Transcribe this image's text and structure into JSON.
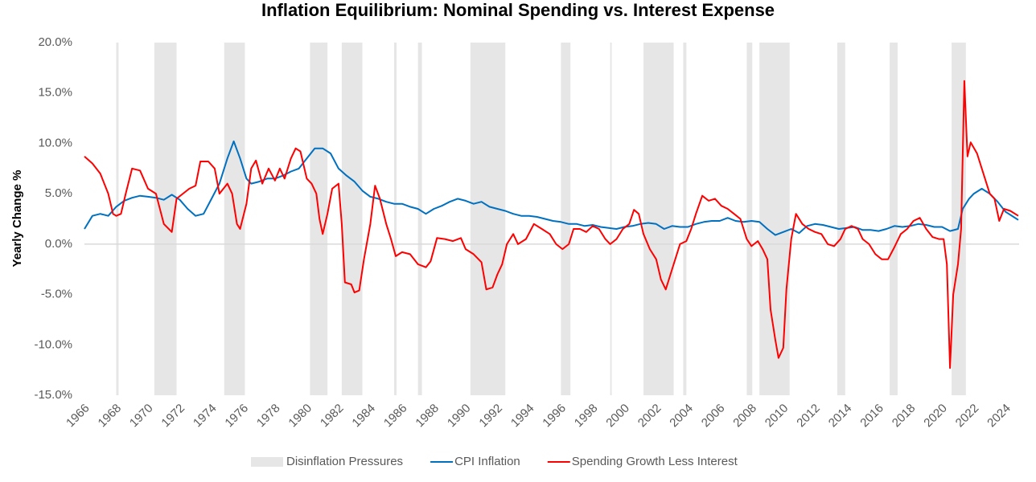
{
  "chart_data": {
    "type": "line",
    "title": "Inflation Equilibrium: Nominal Spending vs. Interest Expense",
    "y_label": "Yearly Change %",
    "xlim": [
      1966,
      2024.85
    ],
    "xticks": [
      1966,
      1968,
      1970,
      1972,
      1974,
      1976,
      1978,
      1980,
      1982,
      1984,
      1986,
      1988,
      1990,
      1992,
      1994,
      1996,
      1998,
      2000,
      2002,
      2004,
      2006,
      2008,
      2010,
      2012,
      2014,
      2016,
      2018,
      2020,
      2022,
      2024
    ],
    "ylim": [
      -15,
      20
    ],
    "yticks": [
      {
        "value": -15,
        "label": "-15.0%"
      },
      {
        "value": -10,
        "label": "-10.0%"
      },
      {
        "value": -5,
        "label": "-5.0%"
      },
      {
        "value": 0,
        "label": "0.0%"
      },
      {
        "value": 5,
        "label": "5.0%"
      },
      {
        "value": 10,
        "label": "10.0%"
      },
      {
        "value": 15,
        "label": "15.0%"
      },
      {
        "value": 20,
        "label": "20.0%"
      }
    ],
    "shaded": {
      "name": "Disinflation Pressures",
      "color": "#e6e6e6",
      "ranges": [
        [
          1968.0,
          1968.15
        ],
        [
          1970.4,
          1971.8
        ],
        [
          1974.8,
          1976.1
        ],
        [
          1980.2,
          1981.3
        ],
        [
          1982.2,
          1983.5
        ],
        [
          1985.5,
          1985.65
        ],
        [
          1987.0,
          1987.25
        ],
        [
          1990.3,
          1992.5
        ],
        [
          1996.0,
          1996.6
        ],
        [
          1999.1,
          1999.2
        ],
        [
          2001.2,
          2003.1
        ],
        [
          2003.7,
          2003.9
        ],
        [
          2007.7,
          2008.05
        ],
        [
          2008.5,
          2010.4
        ],
        [
          2013.4,
          2013.9
        ],
        [
          2016.7,
          2017.2
        ],
        [
          2020.6,
          2021.5
        ]
      ]
    },
    "series": [
      {
        "name": "CPI Inflation",
        "color": "#0070c0",
        "x": [
          1966,
          1966.5,
          1967,
          1967.5,
          1968,
          1968.5,
          1969,
          1969.5,
          1970,
          1970.5,
          1971,
          1971.5,
          1972,
          1972.5,
          1973,
          1973.5,
          1974,
          1974.5,
          1975,
          1975.4,
          1975.8,
          1976.2,
          1976.5,
          1977,
          1977.5,
          1978,
          1978.5,
          1979,
          1979.5,
          1980,
          1980.5,
          1981,
          1981.5,
          1982,
          1982.5,
          1983,
          1983.5,
          1984,
          1984.5,
          1985,
          1985.5,
          1986,
          1986.5,
          1987,
          1987.5,
          1988,
          1988.5,
          1989,
          1989.5,
          1990,
          1990.5,
          1991,
          1991.5,
          1992,
          1992.5,
          1993,
          1993.5,
          1994,
          1994.5,
          1995,
          1995.5,
          1996,
          1996.5,
          1997,
          1997.5,
          1998,
          1998.5,
          1999,
          1999.5,
          2000,
          2000.5,
          2001,
          2001.5,
          2002,
          2002.5,
          2003,
          2003.5,
          2004,
          2004.5,
          2005,
          2005.5,
          2006,
          2006.5,
          2007,
          2007.5,
          2008,
          2008.5,
          2009,
          2009.5,
          2010,
          2010.5,
          2011,
          2011.5,
          2012,
          2012.5,
          2013,
          2013.5,
          2014,
          2014.5,
          2015,
          2015.5,
          2016,
          2016.5,
          2017,
          2017.5,
          2018,
          2018.5,
          2019,
          2019.5,
          2020,
          2020.5,
          2021,
          2021.3,
          2021.7,
          2022,
          2022.5,
          2023,
          2023.5,
          2024,
          2024.5,
          2024.8
        ],
        "values": [
          1.5,
          2.8,
          3.0,
          2.8,
          3.7,
          4.3,
          4.6,
          4.8,
          4.7,
          4.6,
          4.4,
          4.9,
          4.4,
          3.5,
          2.8,
          3.0,
          4.5,
          6.0,
          8.5,
          10.2,
          8.5,
          6.5,
          6.0,
          6.2,
          6.5,
          6.5,
          6.8,
          7.2,
          7.5,
          8.5,
          9.5,
          9.5,
          9.0,
          7.5,
          6.8,
          6.2,
          5.3,
          4.7,
          4.5,
          4.2,
          4.0,
          4.0,
          3.7,
          3.5,
          3.0,
          3.5,
          3.8,
          4.2,
          4.5,
          4.3,
          4.0,
          4.2,
          3.7,
          3.5,
          3.3,
          3.0,
          2.8,
          2.8,
          2.7,
          2.5,
          2.3,
          2.2,
          2.0,
          2.0,
          1.8,
          1.9,
          1.7,
          1.6,
          1.5,
          1.7,
          1.8,
          2.0,
          2.1,
          2.0,
          1.5,
          1.8,
          1.7,
          1.7,
          2.0,
          2.2,
          2.3,
          2.3,
          2.6,
          2.3,
          2.2,
          2.3,
          2.2,
          1.5,
          0.9,
          1.2,
          1.5,
          1.1,
          1.8,
          2.0,
          1.9,
          1.7,
          1.5,
          1.6,
          1.7,
          1.4,
          1.4,
          1.3,
          1.5,
          1.8,
          1.7,
          1.8,
          2.0,
          1.9,
          1.7,
          1.7,
          1.3,
          1.5,
          3.5,
          4.5,
          5.0,
          5.5,
          5.0,
          4.2,
          3.2,
          2.7,
          2.4
        ]
      },
      {
        "name": "Spending Growth Less Interest",
        "color": "#ff0000",
        "x": [
          1966,
          1966.5,
          1967,
          1967.5,
          1967.8,
          1968,
          1968.3,
          1968.6,
          1969,
          1969.5,
          1970,
          1970.5,
          1971,
          1971.5,
          1971.8,
          1972.2,
          1972.6,
          1973,
          1973.3,
          1973.8,
          1974.2,
          1974.5,
          1975,
          1975.3,
          1975.6,
          1975.8,
          1976.2,
          1976.5,
          1976.8,
          1977.2,
          1977.6,
          1978,
          1978.3,
          1978.6,
          1979,
          1979.3,
          1979.6,
          1980,
          1980.3,
          1980.6,
          1980.8,
          1981,
          1981.3,
          1981.6,
          1982,
          1982.2,
          1982.4,
          1982.8,
          1983,
          1983.3,
          1983.6,
          1984,
          1984.3,
          1984.6,
          1985,
          1985.3,
          1985.6,
          1986,
          1986.5,
          1987,
          1987.5,
          1987.8,
          1988.2,
          1988.7,
          1989.2,
          1989.7,
          1990,
          1990.5,
          1991,
          1991.3,
          1991.7,
          1992,
          1992.3,
          1992.6,
          1993,
          1993.3,
          1993.8,
          1994.3,
          1994.8,
          1995.3,
          1995.7,
          1996.1,
          1996.5,
          1996.8,
          1997.2,
          1997.6,
          1998,
          1998.4,
          1998.8,
          1999.1,
          1999.5,
          1999.9,
          2000.3,
          2000.6,
          2000.9,
          2001.2,
          2001.6,
          2002,
          2002.3,
          2002.6,
          2002.9,
          2003.2,
          2003.5,
          2003.9,
          2004.2,
          2004.5,
          2004.9,
          2005.3,
          2005.7,
          2006.1,
          2006.5,
          2006.9,
          2007.3,
          2007.7,
          2008,
          2008.4,
          2008.7,
          2009,
          2009.2,
          2009.5,
          2009.7,
          2010,
          2010.2,
          2010.5,
          2010.8,
          2011.2,
          2011.6,
          2012,
          2012.4,
          2012.8,
          2013.2,
          2013.6,
          2013.9,
          2014.3,
          2014.7,
          2015,
          2015.4,
          2015.8,
          2016.2,
          2016.6,
          2017,
          2017.4,
          2017.8,
          2018.2,
          2018.6,
          2019,
          2019.4,
          2019.8,
          2020.1,
          2020.3,
          2020.5,
          2020.7,
          2021,
          2021.2,
          2021.4,
          2021.6,
          2021.8,
          2022.2,
          2022.6,
          2023,
          2023.3,
          2023.6,
          2023.9,
          2024.3,
          2024.8
        ],
        "values": [
          8.7,
          8.0,
          7.0,
          5.0,
          3.0,
          2.8,
          3.0,
          5.0,
          7.5,
          7.3,
          5.5,
          5.0,
          2.0,
          1.2,
          4.5,
          5.0,
          5.5,
          5.8,
          8.2,
          8.2,
          7.5,
          5.0,
          6.0,
          5.0,
          2.0,
          1.5,
          4.0,
          7.5,
          8.3,
          6.0,
          7.5,
          6.3,
          7.5,
          6.5,
          8.5,
          9.5,
          9.2,
          6.5,
          6.0,
          5.0,
          2.5,
          1.0,
          3.0,
          5.5,
          6.0,
          2.0,
          -3.8,
          -4.0,
          -4.8,
          -4.6,
          -1.5,
          2.0,
          5.8,
          4.5,
          2.0,
          0.5,
          -1.2,
          -0.8,
          -1.0,
          -2.0,
          -2.3,
          -1.7,
          0.6,
          0.5,
          0.3,
          0.6,
          -0.5,
          -1.0,
          -1.8,
          -4.5,
          -4.3,
          -3.0,
          -2.0,
          0.0,
          1.0,
          0.0,
          0.5,
          2.0,
          1.5,
          1.0,
          0.0,
          -0.5,
          0.0,
          1.5,
          1.5,
          1.2,
          1.8,
          1.5,
          0.5,
          0.0,
          0.5,
          1.5,
          2.0,
          3.4,
          3.0,
          1.0,
          -0.5,
          -1.5,
          -3.5,
          -4.5,
          -3.0,
          -1.5,
          0.0,
          0.3,
          1.5,
          3.0,
          4.8,
          4.3,
          4.5,
          3.8,
          3.5,
          3.0,
          2.5,
          0.5,
          -0.2,
          0.3,
          -0.5,
          -1.5,
          -6.5,
          -9.5,
          -11.3,
          -10.3,
          -4.5,
          0.5,
          3.0,
          2.0,
          1.5,
          1.2,
          1.0,
          0.0,
          -0.2,
          0.5,
          1.5,
          1.8,
          1.5,
          0.5,
          0.0,
          -1.0,
          -1.5,
          -1.5,
          -0.3,
          1.0,
          1.5,
          2.3,
          2.6,
          1.5,
          0.7,
          0.5,
          0.5,
          -2.0,
          -12.3,
          -5.0,
          -2.0,
          1.5,
          16.2,
          8.7,
          10.1,
          9.0,
          7.0,
          5.0,
          4.5,
          2.3,
          3.5,
          3.3,
          2.8
        ]
      }
    ]
  }
}
